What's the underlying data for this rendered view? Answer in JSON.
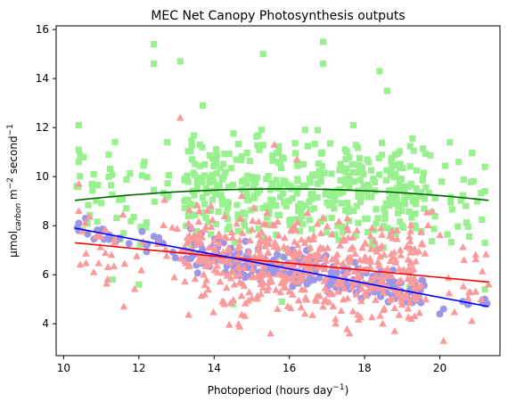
{
  "chart_data": {
    "type": "scatter",
    "title": "MEC Net Canopy Photosynthesis outputs",
    "xlabel": {
      "main": "Photoperiod (hours day",
      "sup": "−1",
      "close": ")"
    },
    "ylabel": {
      "a": "μmol",
      "sub": "carbon",
      "b": " m",
      "sup1": "−2",
      "c": " second",
      "sup2": "−1"
    },
    "xlim": [
      9.8,
      21.6
    ],
    "ylim": [
      2.7,
      16.15
    ],
    "xticks": [
      10,
      12,
      14,
      16,
      18,
      20
    ],
    "yticks": [
      4,
      6,
      8,
      10,
      12,
      14,
      16
    ],
    "grid": false,
    "series": [
      {
        "marker": "square",
        "color": "#98F08E",
        "x_range": [
          10.3,
          21.3
        ],
        "y_center": "quadratic: 9.0 at x=10.3, peak 9.5 near x=15.8, 8.95 at x=21.3",
        "y_spread": [
          4.7,
          15.5
        ],
        "points": [
          [
            10.4,
            12.1
          ],
          [
            10.4,
            11.1
          ],
          [
            10.4,
            10.6
          ],
          [
            10.8,
            10.1
          ],
          [
            11.2,
            10.9
          ],
          [
            12.4,
            15.4
          ],
          [
            12.4,
            14.6
          ],
          [
            13.1,
            14.7
          ],
          [
            15.3,
            15.0
          ],
          [
            16.9,
            15.5
          ],
          [
            16.9,
            14.6
          ],
          [
            18.4,
            14.3
          ],
          [
            18.6,
            13.5
          ],
          [
            20.5,
            10.6
          ],
          [
            21.2,
            10.4
          ],
          [
            21.2,
            9.4
          ],
          [
            21.2,
            7.3
          ],
          [
            21.2,
            5.4
          ],
          [
            11.3,
            5.8
          ],
          [
            12.0,
            5.6
          ],
          [
            14.5,
            4.8
          ],
          [
            15.8,
            4.9
          ],
          [
            19.2,
            5.5
          ],
          [
            13.7,
            12.9
          ],
          [
            17.7,
            12.1
          ]
        ],
        "trend": {
          "color": "#006400",
          "x": [
            10.3,
            12,
            14,
            16,
            18,
            20,
            21.3
          ],
          "y": [
            9.02,
            9.25,
            9.43,
            9.5,
            9.43,
            9.18,
            8.95
          ]
        }
      },
      {
        "marker": "triangle",
        "color": "#FA9A9A",
        "x_range": [
          10.3,
          21.3
        ],
        "y_center": "linear: 7.3 at x=10.3 to 5.7 at x=21.3",
        "y_spread": [
          3.3,
          11.4
        ],
        "points": [
          [
            10.4,
            9.7
          ],
          [
            10.4,
            8.6
          ],
          [
            10.8,
            6.1
          ],
          [
            11.6,
            4.7
          ],
          [
            13.1,
            12.4
          ],
          [
            15.6,
            11.3
          ],
          [
            16.2,
            10.7
          ],
          [
            17.6,
            3.6
          ],
          [
            18.8,
            3.7
          ],
          [
            20.1,
            3.3
          ],
          [
            21.3,
            5.6
          ],
          [
            21.1,
            5.0
          ],
          [
            15.5,
            3.6
          ]
        ],
        "trend": {
          "color": "#FF0000",
          "x": [
            10.3,
            21.3
          ],
          "y": [
            7.3,
            5.7
          ]
        }
      },
      {
        "marker": "circle",
        "color": "#9D95E8",
        "x_range": [
          10.3,
          21.3
        ],
        "y_center": "linear: 7.9 at x=10.3 to 4.7 at x=21.3",
        "y_spread": [
          4.3,
          8.3
        ],
        "points": [
          [
            10.4,
            8.1
          ],
          [
            10.4,
            7.8
          ],
          [
            11.5,
            7.5
          ],
          [
            12.2,
            7.2
          ],
          [
            14.1,
            6.6
          ],
          [
            15.2,
            6.1
          ],
          [
            17.1,
            5.8
          ],
          [
            18.1,
            5.6
          ],
          [
            19.2,
            5.3
          ],
          [
            20.1,
            4.6
          ],
          [
            21.2,
            5.0
          ],
          [
            21.2,
            4.8
          ],
          [
            20.0,
            4.4
          ]
        ],
        "trend": {
          "color": "#0000FF",
          "x": [
            10.3,
            21.3
          ],
          "y": [
            7.9,
            4.7
          ]
        }
      }
    ]
  }
}
